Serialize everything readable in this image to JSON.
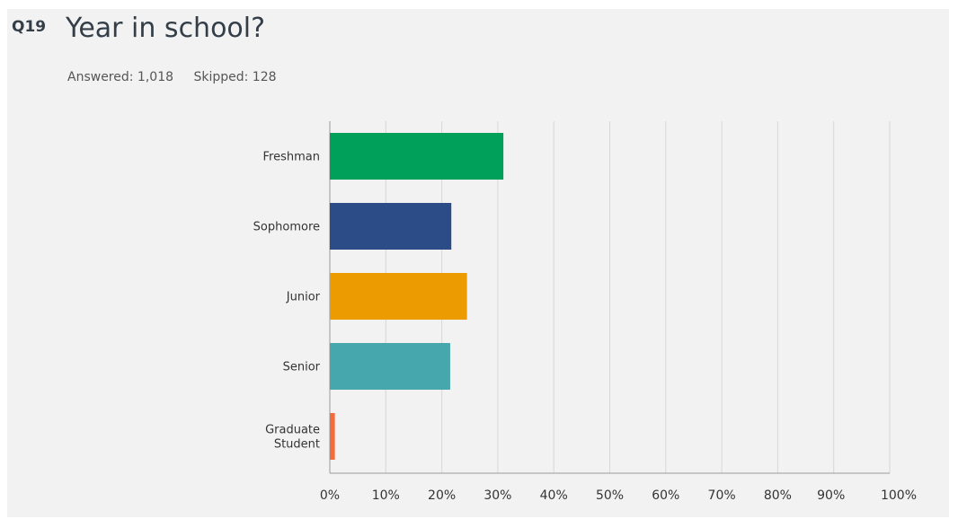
{
  "question": {
    "number": "Q19",
    "title": "Year in school?",
    "answered_label": "Answered: 1,018",
    "skipped_label": "Skipped: 128"
  },
  "chart_data": {
    "type": "bar",
    "orientation": "horizontal",
    "categories": [
      "Freshman",
      "Sophomore",
      "Junior",
      "Senior",
      "Graduate Student"
    ],
    "category_lines": [
      [
        "Freshman"
      ],
      [
        "Sophomore"
      ],
      [
        "Junior"
      ],
      [
        "Senior"
      ],
      [
        "Graduate",
        "Student"
      ]
    ],
    "values": [
      31,
      21.7,
      24.5,
      21.5,
      0.9
    ],
    "colors": [
      "#00a05a",
      "#2b4c86",
      "#ec9b00",
      "#46a7ad",
      "#f36c3d"
    ],
    "xlim": [
      0,
      100
    ],
    "xticks": [
      "0%",
      "10%",
      "20%",
      "30%",
      "40%",
      "50%",
      "60%",
      "70%",
      "80%",
      "90%",
      "100%"
    ],
    "grid": true,
    "gridline_color": "#d7d7d7"
  }
}
